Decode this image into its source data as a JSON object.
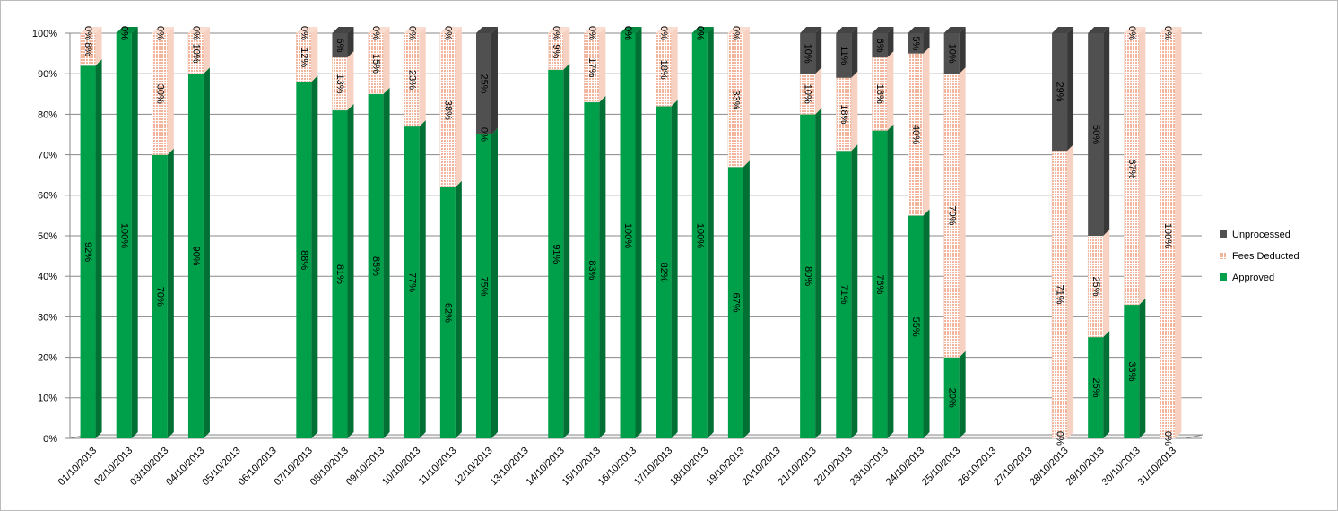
{
  "chart_data": {
    "type": "bar",
    "categories": [
      "01/10/2013",
      "02/10/2013",
      "03/10/2013",
      "04/10/2013",
      "05/10/2013",
      "06/10/2013",
      "07/10/2013",
      "08/10/2013",
      "09/10/2013",
      "10/10/2013",
      "11/10/2013",
      "12/10/2013",
      "13/10/2013",
      "14/10/2013",
      "15/10/2013",
      "16/10/2013",
      "17/10/2013",
      "18/10/2013",
      "19/10/2013",
      "20/10/2013",
      "21/10/2013",
      "22/10/2013",
      "23/10/2013",
      "24/10/2013",
      "25/10/2013",
      "26/10/2013",
      "27/10/2013",
      "28/10/2013",
      "29/10/2013",
      "30/10/2013",
      "31/10/2013"
    ],
    "stacked": true,
    "series": [
      {
        "name": "Approved",
        "color": "#00a04a",
        "values": [
          92,
          100,
          70,
          90,
          null,
          null,
          88,
          81,
          85,
          77,
          62,
          75,
          null,
          91,
          83,
          100,
          82,
          100,
          67,
          null,
          80,
          71,
          76,
          55,
          20,
          null,
          null,
          0,
          25,
          33,
          0
        ],
        "value_labels": [
          "92%",
          "100%",
          "70%",
          "90%",
          null,
          null,
          "88%",
          "81%",
          "85%",
          "77%",
          "62%",
          "75%",
          null,
          "91%",
          "83%",
          "100%",
          "82%",
          "100%",
          "67%",
          null,
          "80%",
          "71%",
          "76%",
          "55%",
          "20%",
          null,
          null,
          "0%",
          "25%",
          "33%",
          "0%"
        ]
      },
      {
        "name": "Fees Deducted",
        "color": "#f2b49a",
        "values": [
          8,
          0,
          30,
          10,
          null,
          null,
          12,
          13,
          15,
          23,
          38,
          0,
          null,
          9,
          17,
          0,
          18,
          0,
          33,
          null,
          10,
          18,
          18,
          40,
          70,
          null,
          null,
          71,
          25,
          67,
          100
        ],
        "value_labels": [
          "8%",
          "0%",
          "30%",
          "10%",
          null,
          null,
          "12%",
          "13%",
          "15%",
          "23%",
          "38%",
          "0%",
          null,
          "9%",
          "17%",
          "0%",
          "18%",
          "0%",
          "33%",
          null,
          "10%",
          "18%",
          "18%",
          "40%",
          "70%",
          null,
          null,
          "71%",
          "25%",
          "67%",
          "100%"
        ]
      },
      {
        "name": "Unprocessed",
        "color": "#505050",
        "values": [
          0,
          0,
          0,
          0,
          null,
          null,
          0,
          6,
          0,
          0,
          0,
          25,
          null,
          0,
          0,
          0,
          0,
          0,
          0,
          null,
          10,
          11,
          6,
          5,
          10,
          null,
          null,
          29,
          50,
          0,
          0
        ],
        "value_labels": [
          "0%",
          "0%",
          "0%",
          "0%",
          null,
          null,
          "0%",
          "6%",
          "0%",
          "0%",
          "0%",
          "25%",
          null,
          "0%",
          "0%",
          "0%",
          "0%",
          "0%",
          "0%",
          null,
          "10%",
          "11%",
          "6%",
          "5%",
          "10%",
          null,
          null,
          "29%",
          "50%",
          "0%",
          "0%"
        ]
      }
    ],
    "ylim": [
      0,
      100
    ],
    "yticks": [
      {
        "value": 0,
        "label": "0%"
      },
      {
        "value": 10,
        "label": "10%"
      },
      {
        "value": 20,
        "label": "20%"
      },
      {
        "value": 30,
        "label": "30%"
      },
      {
        "value": 40,
        "label": "40%"
      },
      {
        "value": 50,
        "label": "50%"
      },
      {
        "value": 60,
        "label": "60%"
      },
      {
        "value": 70,
        "label": "70%"
      },
      {
        "value": 80,
        "label": "80%"
      },
      {
        "value": 90,
        "label": "90%"
      },
      {
        "value": 100,
        "label": "100%"
      }
    ],
    "grid": true,
    "legend": "right"
  }
}
